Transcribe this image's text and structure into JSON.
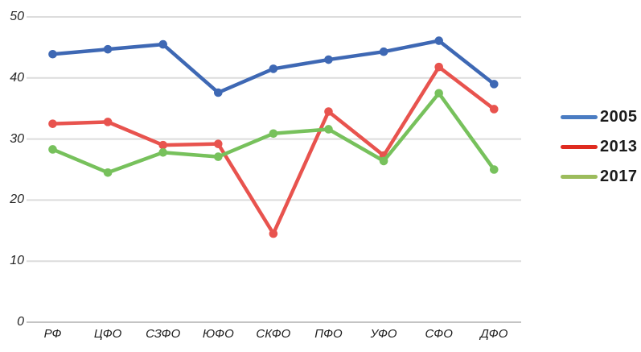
{
  "chart_data": {
    "type": "line",
    "categories": [
      "РФ",
      "ЦФО",
      "СЗФО",
      "ЮФО",
      "СКФО",
      "ПФО",
      "УФО",
      "СФО",
      "ДФО"
    ],
    "series": [
      {
        "name": "2005",
        "color": "#3E68B4",
        "legend_color": "#4A7CC2",
        "values": [
          43.9,
          44.7,
          45.5,
          37.6,
          41.5,
          43.0,
          44.3,
          46.1,
          39.0
        ]
      },
      {
        "name": "2013",
        "color": "#E8534E",
        "legend_color": "#DF2B20",
        "values": [
          32.5,
          32.8,
          29.0,
          29.2,
          14.5,
          34.5,
          27.3,
          41.8,
          34.9
        ]
      },
      {
        "name": "2017",
        "color": "#77C15C",
        "legend_color": "#9CBC5C",
        "values": [
          28.3,
          24.5,
          27.8,
          27.1,
          30.9,
          31.6,
          26.4,
          37.5,
          25.0
        ]
      }
    ],
    "title": "",
    "xlabel": "",
    "ylabel": "",
    "y_ticks": [
      0,
      10,
      20,
      30,
      40,
      50
    ],
    "ylim": [
      0,
      50
    ],
    "grid": true,
    "legend_position": "right",
    "marker": "circle",
    "colors": {
      "gridline": "#DCDCDC",
      "axis_line": "#C4C4C4",
      "tick_label": "#262626"
    }
  }
}
